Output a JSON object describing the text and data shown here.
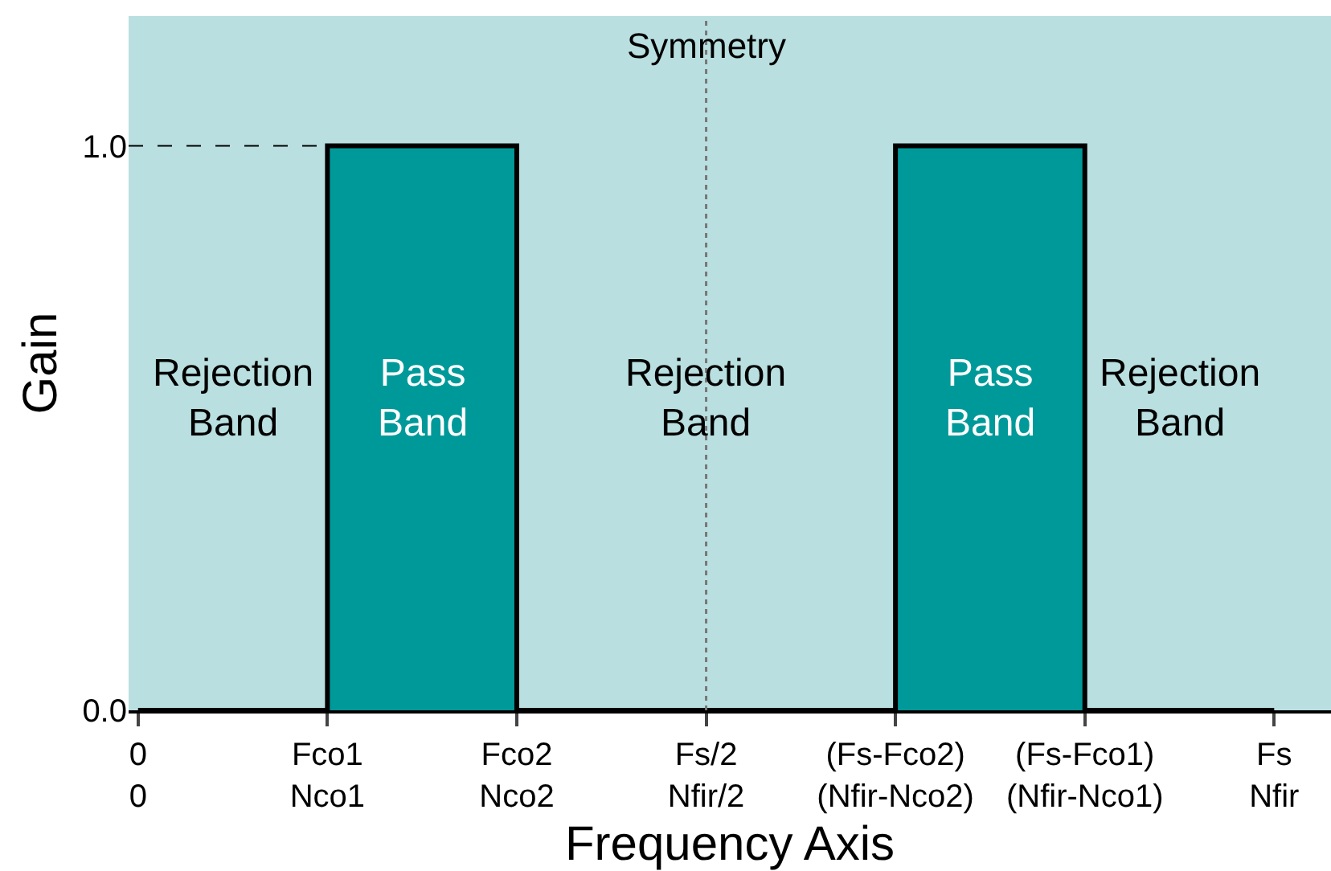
{
  "chart_data": {
    "type": "area",
    "xlabel": "Frequency Axis",
    "ylabel": "Gain",
    "categories": [
      "0\n0",
      "Fco1\nNco1",
      "Fco2\nNco2",
      "Fs/2\nNfir/2",
      "(Fs-Fco2)\n(Nfir-Nco2)",
      "(Fs-Fco1)\n(Nfir-Nco1)",
      "Fs\nNfir"
    ],
    "series": [
      {
        "color": "#009999",
        "values": [
          0,
          1,
          0,
          0,
          1,
          0,
          0
        ]
      }
    ],
    "ylim": [
      0,
      1.23
    ],
    "yticks": [
      {
        "value": 0,
        "label": "0.0"
      },
      {
        "value": 1,
        "label": "1.0"
      }
    ],
    "ref_lines": [
      {
        "axis": "x",
        "value": "Fs/2\nNfir/2",
        "label": "Symmetry",
        "line_style": "dotted"
      },
      {
        "axis": "y",
        "value": 1,
        "line_style": "dashed"
      }
    ],
    "annotations": [
      "Rejection Band",
      "Pass Band",
      "Rejection Band",
      "Pass Band",
      "Rejection Band"
    ],
    "grid": false
  }
}
